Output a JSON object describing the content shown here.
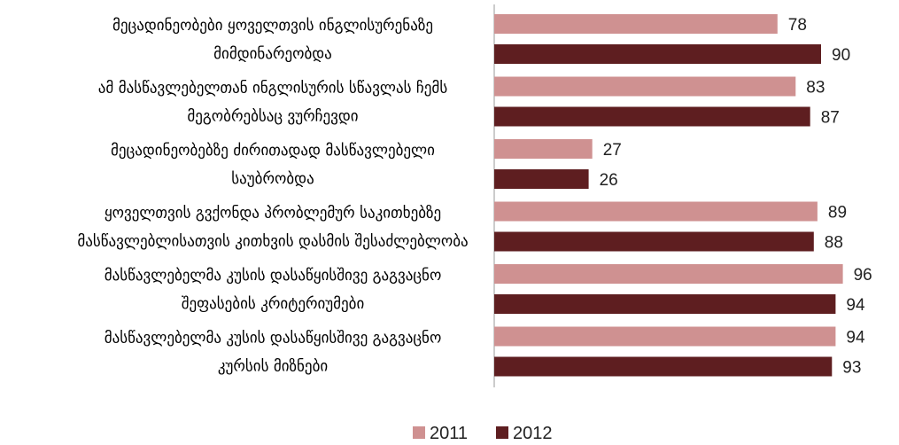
{
  "chart_data": {
    "type": "bar",
    "orientation": "horizontal",
    "categories": [
      [
        "მეცადინეობები ყოველთვის ინგლისურენაზე",
        "მიმდინარეობდა"
      ],
      [
        "ამ მასწავლებელთან ინგლისურის სწავლას ჩემს",
        "მეგობრებსაც ვურჩევდი"
      ],
      [
        "მეცადინეობებზე ძირითადად მასწავლებელი",
        "საუბრობდა"
      ],
      [
        "ყოველთვის გვქონდა პრობლემურ საკითხებზე",
        "მასწავლებლისათვის კითხვის დასმის შესაძლებლობა"
      ],
      [
        "მასწავლებელმა კუსის დასაწყისშივე გაგვაცნო",
        "შეფასების კრიტერიუმები"
      ],
      [
        "მასწავლებელმა კუსის დასაწყისშივე გაგვაცნო",
        "კურსის მიზნები"
      ]
    ],
    "series": [
      {
        "name": "2011",
        "color": "#cf9191",
        "values": [
          78,
          83,
          27,
          89,
          96,
          94
        ]
      },
      {
        "name": "2012",
        "color": "#5e1e20",
        "values": [
          90,
          87,
          26,
          88,
          94,
          93
        ]
      }
    ],
    "xlim": [
      0,
      100
    ],
    "grid": false,
    "legend": "bottom-center",
    "data_labels": true
  }
}
